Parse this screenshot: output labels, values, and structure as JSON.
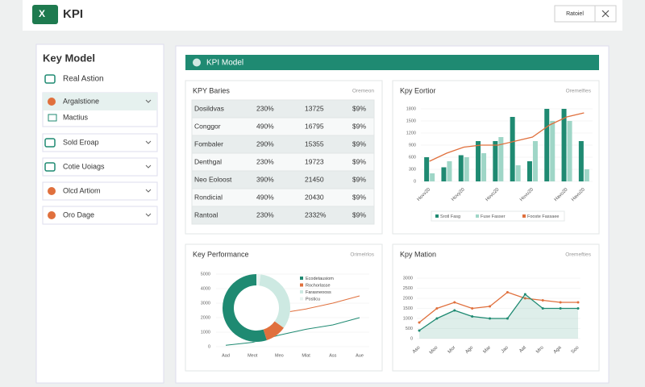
{
  "header": {
    "title": "KPI",
    "button": "Ratoiel"
  },
  "sidebar": {
    "title": "Key Model",
    "items": [
      "Real Astion",
      "Argalstione",
      "Mactius",
      "Sold Eroap",
      "Cotie Uoiags",
      "Olcd Artiom",
      "Oro Dage"
    ]
  },
  "banner": "KPI Model",
  "table": {
    "title": "KPY Baries",
    "note": "Oremeon",
    "rows": [
      [
        "Dosildvas",
        "230%",
        "13725",
        "$9%"
      ],
      [
        "Conggor",
        "490%",
        "16795",
        "$9%"
      ],
      [
        "Fombaler",
        "290%",
        "15355",
        "$9%"
      ],
      [
        "Denthgal",
        "230%",
        "19723",
        "$9%"
      ],
      [
        "Neo Eoloost",
        "390%",
        "21450",
        "$9%"
      ],
      [
        "Rondicial",
        "490%",
        "20430",
        "$9%"
      ],
      [
        "Rantoal",
        "230%",
        "2332%",
        "$9%"
      ]
    ]
  },
  "bar_chart": {
    "type": "bar",
    "title": "Kpy Eortior",
    "note": "Oremelfies",
    "categories": [
      "Hovv20",
      null,
      "Hovy20",
      null,
      "Hovo20",
      null,
      "Hovu20",
      null,
      "Havo20",
      "Havu20"
    ],
    "series": [
      {
        "name": "Srotl Fasg",
        "color": "#1f8a72",
        "values": [
          600,
          350,
          650,
          1000,
          1000,
          1600,
          500,
          1800,
          1800,
          1000
        ]
      },
      {
        "name": "Fuse Fasser",
        "color": "#9fd6c7",
        "values": [
          200,
          500,
          600,
          700,
          1100,
          400,
          1000,
          1500,
          1500,
          300
        ]
      },
      {
        "name": "Fooste Fassaee",
        "color": "#e0703d",
        "type": "line",
        "values": [
          500,
          700,
          850,
          900,
          900,
          1000,
          1100,
          1400,
          1600,
          1700
        ]
      }
    ],
    "ylim": [
      0,
      1800
    ],
    "yticks": [
      0,
      300,
      600,
      900,
      1200,
      1500,
      1800
    ]
  },
  "donut_chart": {
    "type": "pie",
    "title": "Key Performance",
    "note": "Orimelrlos",
    "slices": [
      {
        "name": "Ecodetausiom",
        "color": "#1f8a72",
        "value": 55
      },
      {
        "name": "Rochorlasse",
        "color": "#e0703d",
        "value": 10
      },
      {
        "name": "Farasneooss",
        "color": "#cde9e2",
        "value": 33
      },
      {
        "name": "Posticu",
        "color": "#e9f4f1",
        "value": 2
      }
    ],
    "categories": [
      "Aad",
      "Meot",
      "Meo",
      "Mlat",
      "Ass",
      "Aue"
    ],
    "series": [
      {
        "color": "#e0703d",
        "values": [
          2000,
          2100,
          2300,
          2600,
          3000,
          3500
        ]
      },
      {
        "color": "#1f8a72",
        "values": [
          100,
          300,
          800,
          1200,
          1500,
          2000
        ]
      }
    ],
    "ylim": [
      0,
      5000
    ],
    "yticks": [
      0,
      1000,
      2000,
      3000,
      4000,
      5000
    ]
  },
  "line_chart": {
    "type": "line",
    "title": "Kpy Mation",
    "note": "Oremefties",
    "categories": [
      "Aso",
      "Moo",
      "Mor",
      "Ago",
      "Mar",
      "Jao",
      "Aat",
      "Mro",
      "Aga",
      "Soo"
    ],
    "series": [
      {
        "color": "#e0703d",
        "values": [
          800,
          1500,
          1800,
          1500,
          1600,
          2300,
          2000,
          1900,
          1800,
          1800
        ]
      },
      {
        "color": "#1f8a72",
        "area": true,
        "values": [
          400,
          1000,
          1400,
          1100,
          1000,
          1000,
          2200,
          1500,
          1500,
          1500
        ]
      }
    ],
    "ylim": [
      0,
      3000
    ],
    "yticks": [
      0,
      500,
      1000,
      1500,
      2000,
      2500,
      3000
    ]
  }
}
